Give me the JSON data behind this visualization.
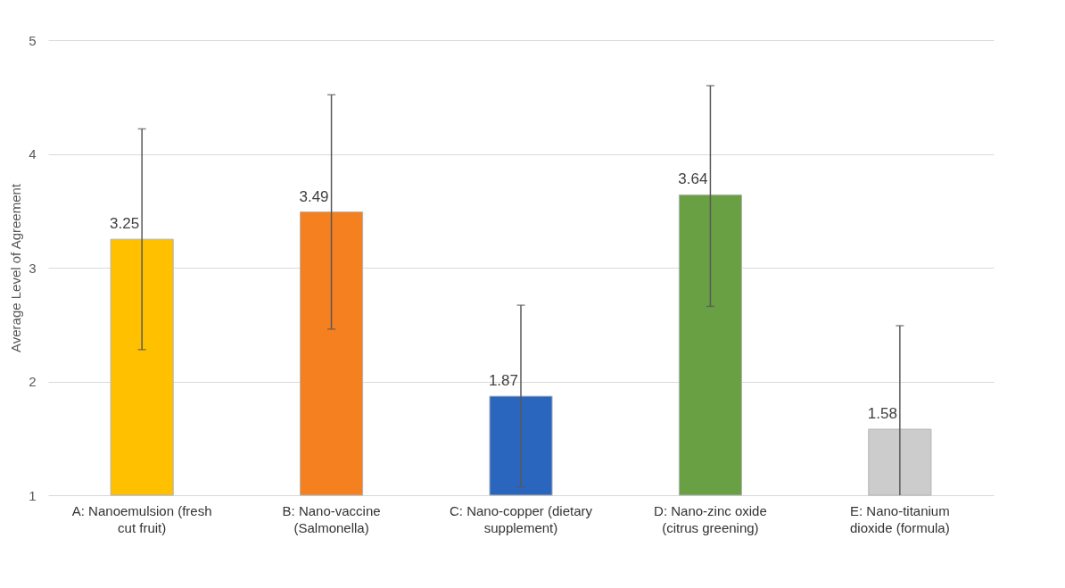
{
  "chart_data": {
    "type": "bar",
    "ylabel": "Average Level of Agreement",
    "categories": [
      "A: Nanoemulsion (fresh cut fruit)",
      "B: Nano-vaccine (Salmonella)",
      "C: Nano-copper (dietary supplement)",
      "D: Nano-zinc oxide (citrus greening)",
      "E: Nano-titanium dioxide (formula)"
    ],
    "values": [
      3.25,
      3.49,
      1.87,
      3.64,
      1.58
    ],
    "colors": [
      "#ffc000",
      "#f4801f",
      "#2a66be",
      "#68a043",
      "#cccccc"
    ],
    "errors": [
      [
        2.28,
        4.22
      ],
      [
        2.46,
        4.52
      ],
      [
        1.07,
        2.67
      ],
      [
        2.66,
        4.6
      ],
      [
        1.0,
        2.49
      ]
    ],
    "data_labels": true,
    "ylim": [
      1,
      5
    ],
    "yticks": [
      1,
      2,
      3,
      4,
      5
    ],
    "grid": "y"
  }
}
